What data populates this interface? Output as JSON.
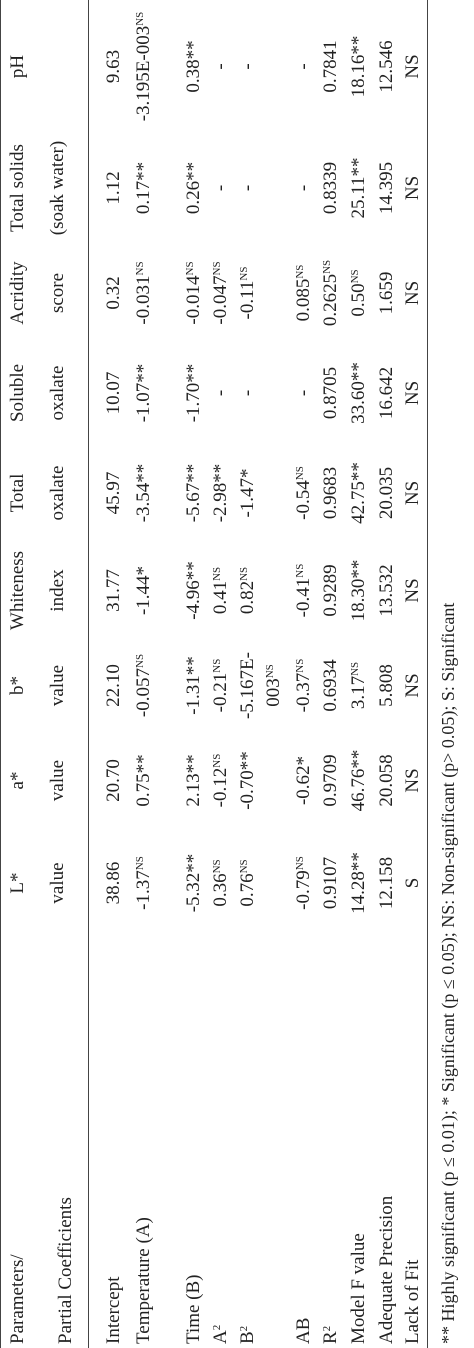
{
  "table": {
    "header": {
      "parameters": "Parameters/",
      "subheader": "Partial Coefficients",
      "columns": [
        [
          "L*",
          "value"
        ],
        [
          "a*",
          "value"
        ],
        [
          "b*",
          "value"
        ],
        [
          "Whiteness",
          "index"
        ],
        [
          "Total",
          "oxalate"
        ],
        [
          "Soluble",
          "oxalate"
        ],
        [
          "Acridity",
          "score"
        ],
        [
          "Total solids",
          "(soak water)"
        ],
        [
          "pH"
        ]
      ]
    },
    "rows": [
      {
        "label": "Intercept",
        "cells": [
          "38.86",
          "20.70",
          "22.10",
          "31.77",
          "45.97",
          "10.07",
          "0.32",
          "1.12",
          "9.63"
        ]
      },
      {
        "label": "Temperature (A)",
        "cells": [
          {
            "value": "-1.37",
            "sup": "NS"
          },
          "0.75**",
          {
            "value": "-0.057",
            "sup": "NS"
          },
          "-1.44*",
          "-3.54**",
          "-1.07**",
          {
            "value": "-0.031",
            "sup": "NS"
          },
          "0.17**",
          {
            "value": "-3.195E-003",
            "sup": "NS"
          }
        ]
      },
      {
        "label": "Time (B)",
        "cells": [
          "-5.32**",
          "2.13**",
          "-1.31**",
          "-4.96**",
          "-5.67**",
          "-1.70**",
          {
            "value": "-0.014",
            "sup": "NS"
          },
          "0.26**",
          "0.38**"
        ]
      },
      {
        "label": {
          "value": "A",
          "sup": "2"
        },
        "cells": [
          {
            "value": "0.36",
            "sup": "NS"
          },
          {
            "value": "-0.12",
            "sup": "NS"
          },
          {
            "value": "-0.21",
            "sup": "NS"
          },
          {
            "value": "0.41",
            "sup": "NS"
          },
          "-2.98**",
          "-",
          {
            "value": "-0.047",
            "sup": "NS"
          },
          "-",
          "-"
        ]
      },
      {
        "label": {
          "value": "B",
          "sup": "2"
        },
        "cells": [
          {
            "value": "0.76",
            "sup": "NS"
          },
          "-0.70**",
          {
            "value": "-5.167E-003",
            "sup": "NS"
          },
          {
            "value": "0.82",
            "sup": "NS"
          },
          "-1.47*",
          "-",
          {
            "value": "-0.11",
            "sup": "NS"
          },
          "-",
          "-"
        ]
      },
      {
        "label": "AB",
        "cells": [
          {
            "value": "-0.79",
            "sup": "NS"
          },
          "-0.62*",
          {
            "value": "-0.37",
            "sup": "NS"
          },
          {
            "value": "-0.41",
            "sup": "NS"
          },
          {
            "value": "-0.54",
            "sup": "NS"
          },
          "-",
          {
            "value": "0.085",
            "sup": "NS"
          },
          "-",
          "-"
        ]
      },
      {
        "label": {
          "value": "R",
          "sup": "2"
        },
        "cells": [
          "0.9107",
          "0.9709",
          "0.6934",
          "0.9289",
          "0.9683",
          "0.8705",
          {
            "value": "0.2625",
            "sup": "NS"
          },
          "0.8339",
          "0.7841"
        ]
      },
      {
        "label": "Model F value",
        "cells": [
          "14.28**",
          "46.76**",
          {
            "value": "3.17",
            "sup": "NS"
          },
          "18.30**",
          "42.75**",
          "33.60**",
          {
            "value": "0.50",
            "sup": "NS"
          },
          "25.11**",
          "18.16**"
        ]
      },
      {
        "label": "Adequate Precision",
        "cells": [
          "12.158",
          "20.058",
          "5.808",
          "13.532",
          "20.035",
          "16.642",
          "1.659",
          "14.395",
          "12.546"
        ]
      },
      {
        "label": "Lack of Fit",
        "cells": [
          "S",
          "NS",
          "NS",
          "NS",
          "NS",
          "NS",
          "NS",
          "NS",
          "NS"
        ]
      }
    ],
    "footnote": "** Highly significant (p ≤ 0.01); * Significant (p ≤ 0.05); NS: Non-significant (p> 0.05); S: Significant"
  }
}
